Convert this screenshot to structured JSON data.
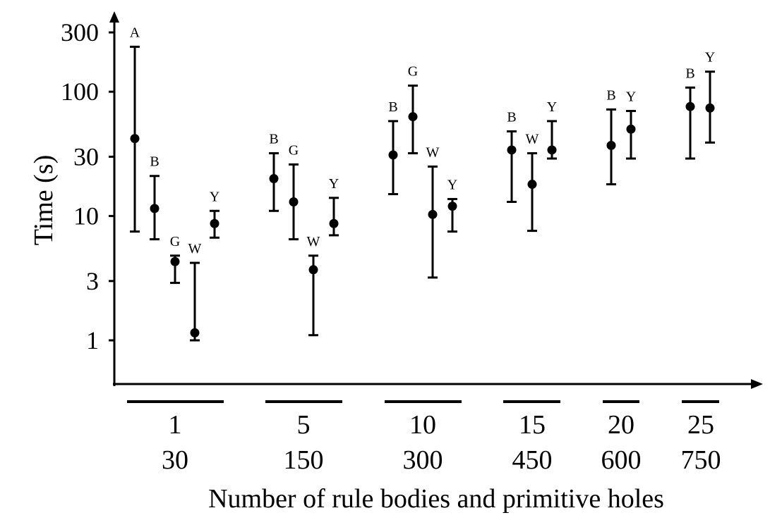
{
  "chart_data": {
    "type": "scatter",
    "subtype": "error-bar",
    "y_scale": "log",
    "xlabel": "Number of rule bodies and primitive holes",
    "ylabel": "Time (s)",
    "yticks": [
      1,
      3,
      10,
      30,
      100,
      300
    ],
    "ylim": [
      0.5,
      400
    ],
    "grid": false,
    "groups": [
      {
        "label_top": "1",
        "label_bottom": "30",
        "points": [
          {
            "series": "A",
            "value": 42,
            "low": 7.5,
            "high": 230
          },
          {
            "series": "B",
            "value": 11.5,
            "low": 6.5,
            "high": 21
          },
          {
            "series": "G",
            "value": 4.3,
            "low": 2.9,
            "high": 4.8
          },
          {
            "series": "W",
            "value": 1.15,
            "low": 1.0,
            "high": 4.2
          },
          {
            "series": "Y",
            "value": 8.7,
            "low": 6.7,
            "high": 11
          }
        ]
      },
      {
        "label_top": "5",
        "label_bottom": "150",
        "points": [
          {
            "series": "B",
            "value": 20,
            "low": 11,
            "high": 32
          },
          {
            "series": "G",
            "value": 13,
            "low": 6.5,
            "high": 26
          },
          {
            "series": "W",
            "value": 3.7,
            "low": 1.1,
            "high": 4.8
          },
          {
            "series": "Y",
            "value": 8.7,
            "low": 7.0,
            "high": 14
          }
        ]
      },
      {
        "label_top": "10",
        "label_bottom": "300",
        "points": [
          {
            "series": "B",
            "value": 31,
            "low": 15,
            "high": 58
          },
          {
            "series": "G",
            "value": 63,
            "low": 32,
            "high": 112
          },
          {
            "series": "W",
            "value": 10.3,
            "low": 3.2,
            "high": 25
          },
          {
            "series": "Y",
            "value": 12,
            "low": 7.5,
            "high": 13.7
          }
        ]
      },
      {
        "label_top": "15",
        "label_bottom": "450",
        "points": [
          {
            "series": "B",
            "value": 34,
            "low": 13,
            "high": 48
          },
          {
            "series": "W",
            "value": 18,
            "low": 7.6,
            "high": 32
          },
          {
            "series": "Y",
            "value": 34,
            "low": 29,
            "high": 58
          }
        ]
      },
      {
        "label_top": "20",
        "label_bottom": "600",
        "points": [
          {
            "series": "B",
            "value": 37,
            "low": 18,
            "high": 72
          },
          {
            "series": "Y",
            "value": 50,
            "low": 29,
            "high": 70
          }
        ]
      },
      {
        "label_top": "25",
        "label_bottom": "750",
        "points": [
          {
            "series": "B",
            "value": 76,
            "low": 29,
            "high": 108
          },
          {
            "series": "Y",
            "value": 74,
            "low": 39,
            "high": 145
          }
        ]
      }
    ]
  }
}
